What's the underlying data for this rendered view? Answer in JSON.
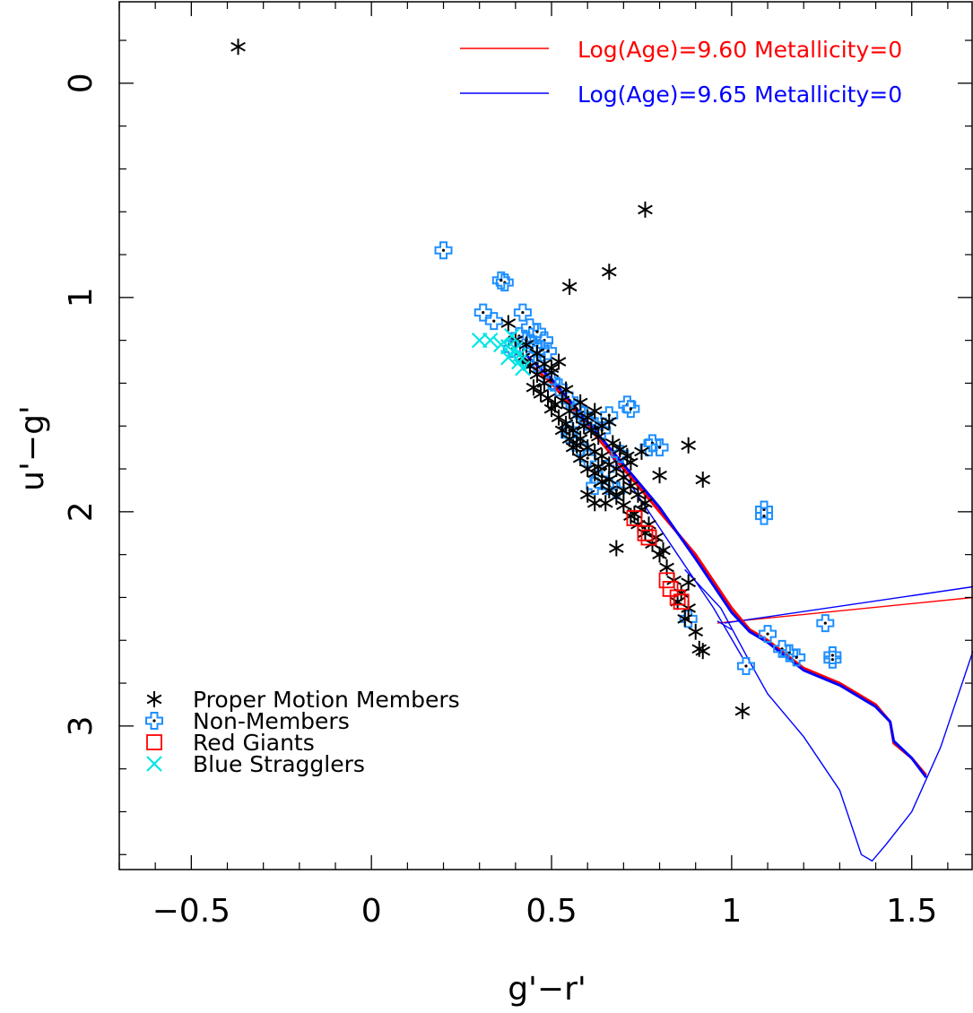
{
  "chart_data": {
    "type": "scatter",
    "title": "",
    "xlabel": "g'−r'",
    "ylabel": "u'−g'",
    "xlim": [
      -0.7,
      1.67
    ],
    "ylim": [
      3.67,
      -0.38
    ],
    "y_inverted": true,
    "grid": false,
    "legend_placement": "bottom-left",
    "x_ticks": [
      "−0.5",
      "0",
      "0.5",
      "1",
      "1.5"
    ],
    "y_ticks": [
      "0",
      "1",
      "2",
      "3"
    ],
    "colors": {
      "members": "#000000",
      "non_members": "#1e8fff",
      "red_giants": "#ff0000",
      "blue_stragglers": "#00e5e5",
      "iso_960": "#ff0000",
      "iso_965": "#0000ff"
    },
    "series": [
      {
        "name": "Proper Motion Members",
        "marker": "asterisk",
        "points": [
          [
            -0.37,
            -0.17
          ],
          [
            0.76,
            0.59
          ],
          [
            0.55,
            0.95
          ],
          [
            0.66,
            0.88
          ],
          [
            0.38,
            1.12
          ],
          [
            0.4,
            1.2
          ],
          [
            0.42,
            1.28
          ],
          [
            0.44,
            1.32
          ],
          [
            0.46,
            1.36
          ],
          [
            0.48,
            1.4
          ],
          [
            0.5,
            1.35
          ],
          [
            0.52,
            1.3
          ],
          [
            0.45,
            1.42
          ],
          [
            0.47,
            1.45
          ],
          [
            0.49,
            1.47
          ],
          [
            0.51,
            1.5
          ],
          [
            0.53,
            1.48
          ],
          [
            0.55,
            1.53
          ],
          [
            0.57,
            1.55
          ],
          [
            0.59,
            1.6
          ],
          [
            0.61,
            1.62
          ],
          [
            0.63,
            1.65
          ],
          [
            0.5,
            1.52
          ],
          [
            0.52,
            1.56
          ],
          [
            0.54,
            1.59
          ],
          [
            0.56,
            1.62
          ],
          [
            0.58,
            1.66
          ],
          [
            0.6,
            1.7
          ],
          [
            0.62,
            1.72
          ],
          [
            0.64,
            1.74
          ],
          [
            0.66,
            1.78
          ],
          [
            0.68,
            1.8
          ],
          [
            0.7,
            1.84
          ],
          [
            0.72,
            1.88
          ],
          [
            0.74,
            1.92
          ],
          [
            0.76,
            1.96
          ],
          [
            0.56,
            1.7
          ],
          [
            0.58,
            1.75
          ],
          [
            0.6,
            1.8
          ],
          [
            0.62,
            1.82
          ],
          [
            0.64,
            1.86
          ],
          [
            0.66,
            1.9
          ],
          [
            0.68,
            1.93
          ],
          [
            0.7,
            1.97
          ],
          [
            0.72,
            2.02
          ],
          [
            0.74,
            2.06
          ],
          [
            0.76,
            2.1
          ],
          [
            0.78,
            2.15
          ],
          [
            0.8,
            2.2
          ],
          [
            0.82,
            2.26
          ],
          [
            0.84,
            2.32
          ],
          [
            0.86,
            2.38
          ],
          [
            0.88,
            2.45
          ],
          [
            0.9,
            2.56
          ],
          [
            0.92,
            2.65
          ],
          [
            0.91,
            2.64
          ],
          [
            0.88,
            2.33
          ],
          [
            0.85,
            2.42
          ],
          [
            0.87,
            2.5
          ],
          [
            1.03,
            2.93
          ],
          [
            0.68,
            2.17
          ],
          [
            0.65,
            1.96
          ],
          [
            0.88,
            1.69
          ],
          [
            0.92,
            1.85
          ],
          [
            0.8,
            1.83
          ],
          [
            0.75,
            1.72
          ],
          [
            0.63,
            1.79
          ],
          [
            0.7,
            1.9
          ],
          [
            0.72,
            1.77
          ],
          [
            0.6,
            1.92
          ],
          [
            0.62,
            1.96
          ],
          [
            0.66,
            1.85
          ],
          [
            0.53,
            1.62
          ],
          [
            0.55,
            1.66
          ],
          [
            0.57,
            1.69
          ],
          [
            0.43,
            1.22
          ],
          [
            0.46,
            1.26
          ],
          [
            0.48,
            1.31
          ],
          [
            0.5,
            1.33
          ],
          [
            0.77,
            2.06
          ],
          [
            0.79,
            2.12
          ],
          [
            0.81,
            2.18
          ],
          [
            0.75,
            1.99
          ],
          [
            0.73,
            2.01
          ],
          [
            0.6,
            1.56
          ],
          [
            0.64,
            1.6
          ],
          [
            0.67,
            1.68
          ],
          [
            0.69,
            1.71
          ],
          [
            0.71,
            1.74
          ],
          [
            0.54,
            1.43
          ],
          [
            0.58,
            1.49
          ],
          [
            0.62,
            1.53
          ],
          [
            0.66,
            1.58
          ]
        ]
      },
      {
        "name": "Non-Members",
        "marker": "open-cross",
        "points": [
          [
            0.2,
            0.78
          ],
          [
            0.37,
            0.93
          ],
          [
            0.36,
            0.92
          ],
          [
            0.31,
            1.07
          ],
          [
            0.34,
            1.11
          ],
          [
            0.42,
            1.07
          ],
          [
            0.44,
            1.14
          ],
          [
            0.46,
            1.16
          ],
          [
            0.48,
            1.2
          ],
          [
            0.45,
            1.22
          ],
          [
            0.47,
            1.24
          ],
          [
            0.49,
            1.25
          ],
          [
            0.41,
            1.18
          ],
          [
            0.43,
            1.2
          ],
          [
            0.39,
            1.24
          ],
          [
            0.55,
            1.48
          ],
          [
            0.57,
            1.52
          ],
          [
            0.59,
            1.55
          ],
          [
            0.55,
            1.64
          ],
          [
            0.6,
            1.58
          ],
          [
            0.64,
            1.62
          ],
          [
            0.66,
            1.55
          ],
          [
            0.62,
            1.6
          ],
          [
            0.71,
            1.5
          ],
          [
            0.72,
            1.52
          ],
          [
            0.77,
            1.7
          ],
          [
            0.78,
            1.68
          ],
          [
            0.8,
            1.7
          ],
          [
            0.69,
            1.73
          ],
          [
            0.65,
            1.8
          ],
          [
            0.63,
            1.85
          ],
          [
            0.62,
            1.88
          ],
          [
            0.66,
            1.88
          ],
          [
            0.68,
            1.9
          ],
          [
            0.6,
            1.75
          ],
          [
            0.58,
            1.7
          ],
          [
            0.55,
            1.62
          ],
          [
            1.09,
            1.99
          ],
          [
            1.09,
            2.02
          ],
          [
            0.88,
            2.5
          ],
          [
            1.04,
            2.72
          ],
          [
            1.1,
            2.57
          ],
          [
            1.14,
            2.64
          ],
          [
            1.16,
            2.66
          ],
          [
            1.18,
            2.68
          ],
          [
            1.26,
            2.52
          ],
          [
            1.28,
            2.67
          ],
          [
            1.28,
            2.69
          ],
          [
            0.44,
            1.29
          ],
          [
            0.46,
            1.31
          ],
          [
            0.52,
            1.42
          ],
          [
            0.5,
            1.39
          ]
        ]
      },
      {
        "name": "Red Giants",
        "marker": "open-square",
        "points": [
          [
            0.73,
            2.03
          ],
          [
            0.76,
            2.1
          ],
          [
            0.77,
            2.12
          ],
          [
            0.82,
            2.32
          ],
          [
            0.83,
            2.36
          ],
          [
            0.85,
            2.4
          ],
          [
            0.86,
            2.42
          ]
        ]
      },
      {
        "name": "Blue Stragglers",
        "marker": "x",
        "points": [
          [
            0.3,
            1.2
          ],
          [
            0.33,
            1.2
          ],
          [
            0.36,
            1.22
          ],
          [
            0.38,
            1.23
          ],
          [
            0.39,
            1.18
          ],
          [
            0.4,
            1.24
          ],
          [
            0.41,
            1.3
          ],
          [
            0.42,
            1.33
          ],
          [
            0.41,
            1.27
          ],
          [
            0.38,
            1.28
          ]
        ]
      }
    ],
    "isochrones": [
      {
        "name": "Log(Age)=9.60  Metallicity=0",
        "color": "#ff0000",
        "points": [
          [
            0.42,
            1.28
          ],
          [
            0.5,
            1.4
          ],
          [
            0.6,
            1.6
          ],
          [
            0.7,
            1.8
          ],
          [
            0.8,
            2.0
          ],
          [
            0.9,
            2.2
          ],
          [
            1.0,
            2.45
          ],
          [
            1.05,
            2.55
          ],
          [
            1.1,
            2.6
          ],
          [
            1.2,
            2.73
          ],
          [
            1.3,
            2.8
          ],
          [
            1.4,
            2.9
          ],
          [
            1.44,
            2.98
          ],
          [
            1.45,
            3.08
          ],
          [
            1.5,
            3.15
          ],
          [
            1.54,
            3.23
          ]
        ]
      },
      {
        "name": "Log(Age)=9.65  Metallicity=0",
        "color": "#0000ff",
        "points": [
          [
            0.43,
            1.27
          ],
          [
            0.5,
            1.38
          ],
          [
            0.6,
            1.58
          ],
          [
            0.7,
            1.78
          ],
          [
            0.8,
            1.98
          ],
          [
            0.9,
            2.22
          ],
          [
            1.0,
            2.47
          ],
          [
            1.05,
            2.56
          ],
          [
            1.1,
            2.61
          ],
          [
            1.2,
            2.74
          ],
          [
            1.3,
            2.81
          ],
          [
            1.4,
            2.91
          ],
          [
            1.44,
            2.98
          ],
          [
            1.45,
            3.07
          ],
          [
            1.5,
            3.15
          ],
          [
            1.54,
            3.24
          ]
        ]
      }
    ],
    "extra_lines": [
      {
        "color": "#ff0000",
        "points": [
          [
            0.96,
            2.52
          ],
          [
            1.67,
            2.4
          ]
        ]
      },
      {
        "color": "#0000ff",
        "points": [
          [
            0.98,
            2.52
          ],
          [
            1.67,
            2.35
          ]
        ]
      },
      {
        "color": "#0000ff",
        "points": [
          [
            0.96,
            2.51
          ],
          [
            1.0,
            2.55
          ]
        ]
      },
      {
        "color": "#0000ff",
        "points": [
          [
            0.87,
            2.27
          ],
          [
            0.97,
            2.45
          ],
          [
            1.05,
            2.7
          ],
          [
            1.1,
            2.85
          ],
          [
            1.2,
            3.05
          ],
          [
            1.3,
            3.3
          ],
          [
            1.36,
            3.6
          ],
          [
            1.39,
            3.63
          ],
          [
            1.43,
            3.55
          ],
          [
            1.5,
            3.4
          ],
          [
            1.58,
            3.1
          ],
          [
            1.67,
            2.65
          ]
        ]
      },
      {
        "color": "#0000ff",
        "points": [
          [
            0.45,
            1.3
          ],
          [
            0.55,
            1.48
          ],
          [
            0.65,
            1.7
          ],
          [
            0.75,
            1.95
          ],
          [
            0.85,
            2.2
          ],
          [
            0.95,
            2.45
          ],
          [
            1.03,
            2.68
          ]
        ]
      }
    ]
  }
}
